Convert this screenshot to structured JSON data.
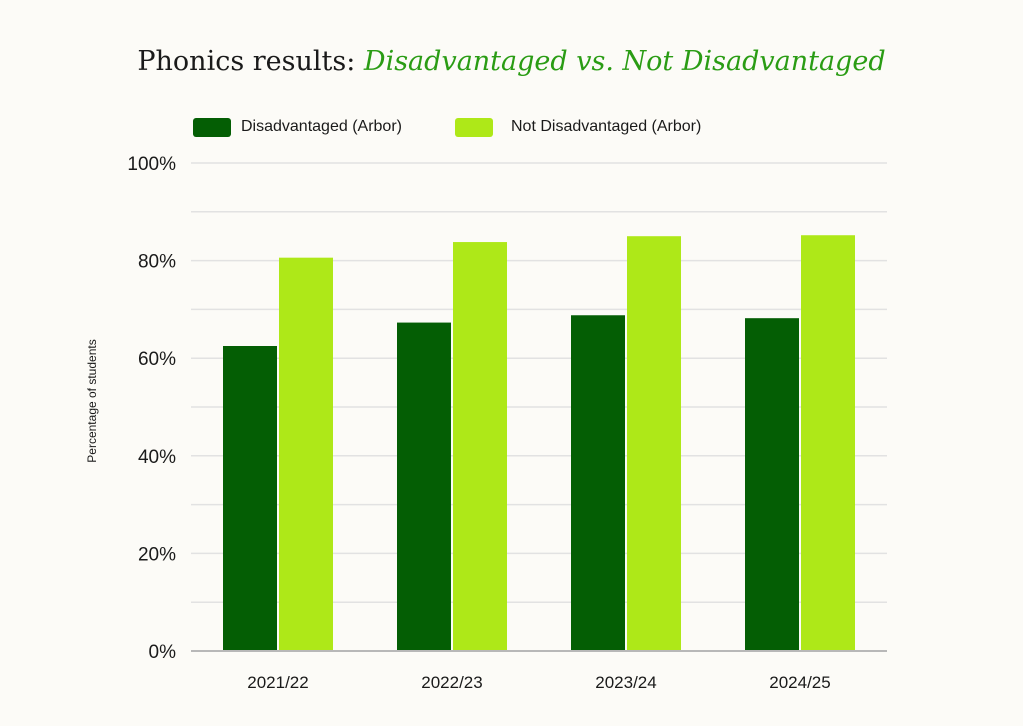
{
  "title": {
    "prefix": "Phonics results: ",
    "accent": "Disadvantaged vs. Not Disadvantaged"
  },
  "colors": {
    "background": "#fcfbf7",
    "title_accent": "#2a9c14",
    "disadvantaged": "#045e04",
    "not_disadvantaged": "#aee818",
    "grid": "#e2e2e2",
    "axis": "#b8b8b8"
  },
  "chart_data": {
    "type": "bar",
    "title": "Phonics results: Disadvantaged vs. Not Disadvantaged",
    "categories": [
      "2021/22",
      "2022/23",
      "2023/24",
      "2024/25"
    ],
    "series": [
      {
        "name": "Disadvantaged (Arbor)",
        "color": "#045e04",
        "values": [
          62.5,
          67.3,
          68.8,
          68.2
        ]
      },
      {
        "name": "Not Disadvantaged (Arbor)",
        "color": "#aee818",
        "values": [
          80.6,
          83.8,
          85.0,
          85.2
        ]
      }
    ],
    "xlabel": "",
    "ylabel": "Percentage of students",
    "ylim": [
      0,
      100
    ],
    "yticks": [
      "0%",
      "20%",
      "40%",
      "60%",
      "80%",
      "100%"
    ],
    "grid": true,
    "legend_position": "top-left"
  }
}
